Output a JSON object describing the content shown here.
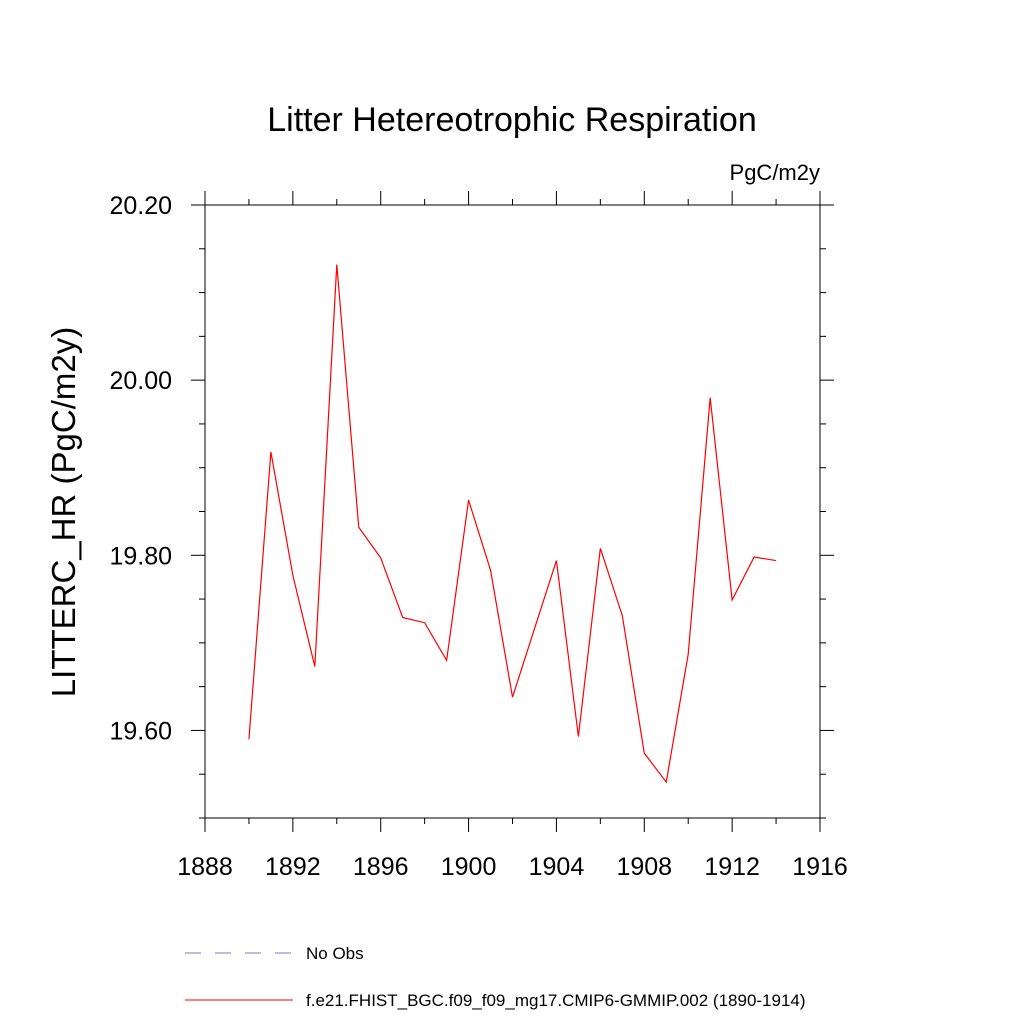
{
  "chart_data": {
    "type": "line",
    "title": "Litter Hetereotrophic Respiration",
    "units_label": "PgC/m2y",
    "xlabel": "",
    "ylabel": "LITTERC_HR  (PgC/m2y)",
    "xlim": [
      1888,
      1916
    ],
    "ylim": [
      19.5,
      20.2
    ],
    "x_ticks": [
      1888,
      1892,
      1896,
      1900,
      1904,
      1908,
      1912,
      1916
    ],
    "x_tick_labels": [
      "1888",
      "1892",
      "1896",
      "1900",
      "1904",
      "1908",
      "1912",
      "1916"
    ],
    "x_minor_step": 2,
    "y_ticks": [
      19.6,
      19.8,
      20.0,
      20.2
    ],
    "y_tick_labels": [
      "19.60",
      "19.80",
      "20.00",
      "20.20"
    ],
    "y_minor_step": 0.05,
    "grid": false,
    "series": [
      {
        "name": "f.e21.FHIST_BGC.f09_f09_mg17.CMIP6-GMMIP.002 (1890-1914)",
        "color": "#ff0000",
        "x": [
          1890,
          1891,
          1892,
          1893,
          1894,
          1895,
          1896,
          1897,
          1898,
          1899,
          1900,
          1901,
          1902,
          1903,
          1904,
          1905,
          1906,
          1907,
          1908,
          1909,
          1910,
          1911,
          1912,
          1913,
          1914
        ],
        "values": [
          19.59,
          19.918,
          19.777,
          19.673,
          20.132,
          19.832,
          19.797,
          19.729,
          19.723,
          19.68,
          19.863,
          19.783,
          19.638,
          19.716,
          19.794,
          19.593,
          19.808,
          19.731,
          19.574,
          19.541,
          19.687,
          19.98,
          19.749,
          19.798,
          19.794
        ]
      }
    ],
    "legend": [
      {
        "label": "No Obs",
        "color": "#7777cc",
        "style": "dashed"
      },
      {
        "label": "f.e21.FHIST_BGC.f09_f09_mg17.CMIP6-GMMIP.002 (1890-1914)",
        "color": "#ff0000",
        "style": "solid"
      }
    ],
    "legend_position": "bottom"
  }
}
